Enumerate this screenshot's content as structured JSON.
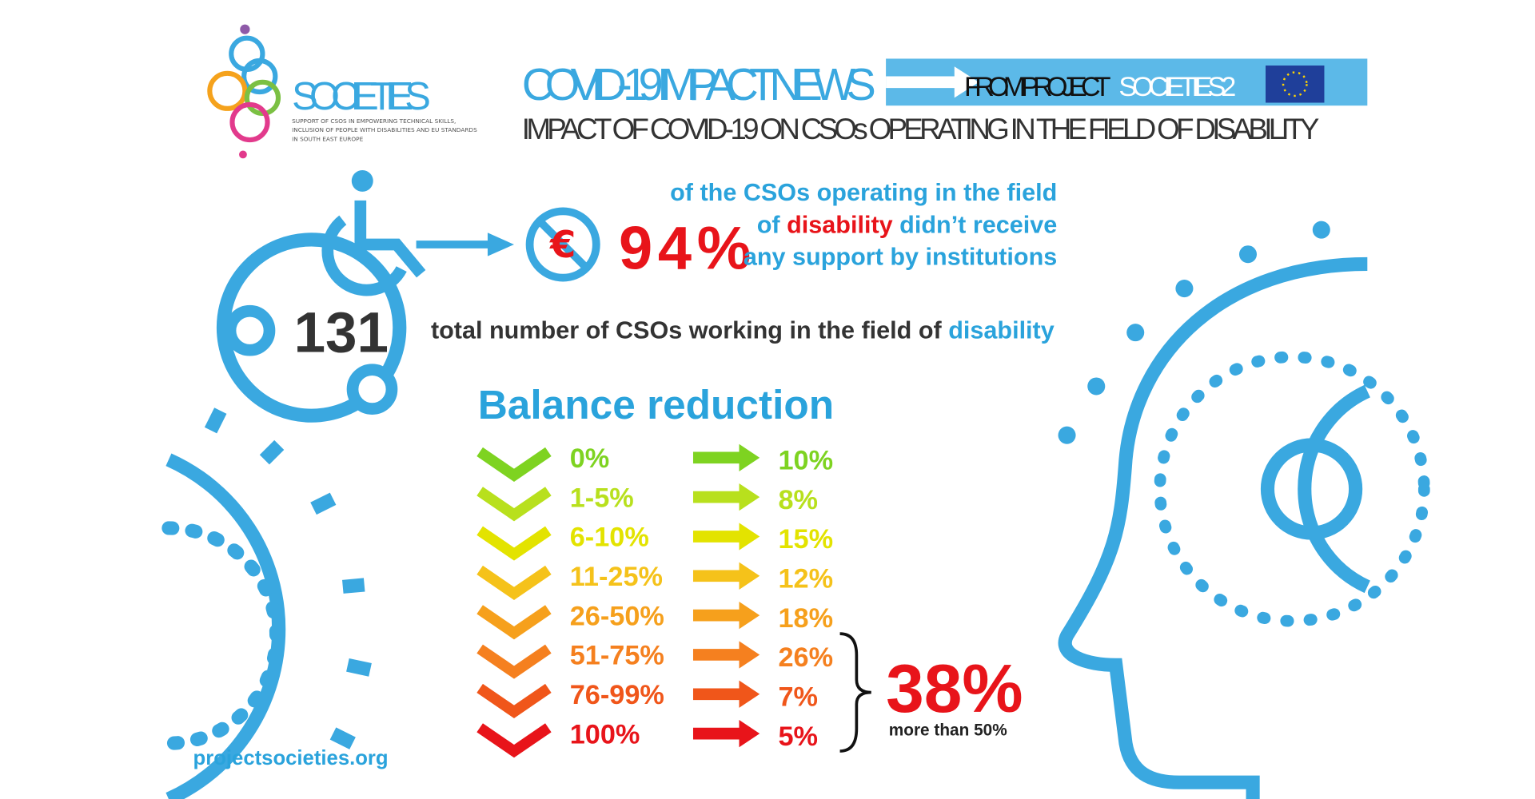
{
  "logo": {
    "name": "SOCIETIES",
    "tagline": [
      "SUPPORT OF CSOS IN EMPOWERING TECHNICAL SKILLS,",
      "INCLUSION OF PEOPLE WITH DISABILITIES AND EU STANDARDS",
      "IN SOUTH EAST EUROPE"
    ]
  },
  "header": {
    "title": "COVID-19 IMPACT NEWS",
    "from": "FROM PROJECT",
    "project": "SOCIETIES2",
    "subtitle": "IMPACT OF COVID-19 ON CSOs OPERATING IN THE FIELD OF DISABILITY"
  },
  "support": {
    "currency": "€",
    "value": "94%",
    "line1": "of the CSOs operating in the field",
    "line2_start": "of",
    "line2_highlight": "disability",
    "line2_end": "didn’t receive",
    "line3": "any support by institutions"
  },
  "total": {
    "value": "131",
    "text": "total number of CSOs working in the field of",
    "highlight": "disability"
  },
  "balance": {
    "title": "Balance reduction",
    "rows": [
      {
        "range": "0%",
        "share": "10%",
        "color": "#7ed321"
      },
      {
        "range": "1-5%",
        "share": "8%",
        "color": "#b8e01d"
      },
      {
        "range": "6-10%",
        "share": "15%",
        "color": "#e3e300"
      },
      {
        "range": "11-25%",
        "share": "12%",
        "color": "#f5c21a"
      },
      {
        "range": "26-50%",
        "share": "18%",
        "color": "#f6a01c"
      },
      {
        "range": "51-75%",
        "share": "26%",
        "color": "#f5801f"
      },
      {
        "range": "76-99%",
        "share": "7%",
        "color": "#f0561a"
      },
      {
        "range": "100%",
        "share": "5%",
        "color": "#e8141a"
      }
    ]
  },
  "summary": {
    "value": "38%",
    "label": "more than 50%"
  },
  "footer": {
    "url": "projectsocieties.org"
  }
}
